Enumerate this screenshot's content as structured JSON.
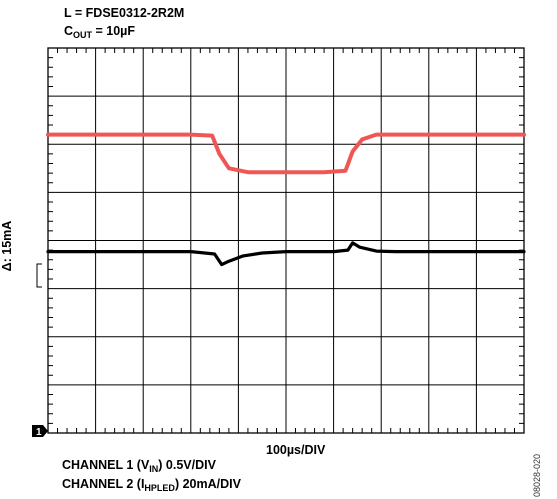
{
  "header": {
    "line1": "L = FDSE0312-2R2M",
    "line2_prefix": "C",
    "line2_sub": "OUT",
    "line2_suffix": " = 10µF"
  },
  "timebase": "100µs/DIV",
  "marker_label": "1",
  "delta_label": "Δ: 15mA",
  "figure_id": "08028-020",
  "channel1": {
    "prefix": "CHANNEL 1 (V",
    "sub": "IN",
    "suffix": ") 0.5V/DIV"
  },
  "channel2": {
    "prefix": "CHANNEL 2 (I",
    "sub": "HPLED",
    "suffix": ") 20mA/DIV"
  },
  "colors": {
    "ch1": "#f05656",
    "ch2": "#000000",
    "grid": "#000000"
  },
  "chart_data": {
    "type": "line",
    "title": "",
    "xlabel": "100µs/DIV",
    "grid": true,
    "x_divisions": 10,
    "y_divisions": 8,
    "xlim": [
      0,
      10
    ],
    "ylim": [
      0,
      8
    ],
    "series": [
      {
        "name": "CHANNEL 1 (VIN) 0.5V/DIV",
        "color": "#f05656",
        "x": [
          0,
          1,
          2,
          3,
          3.45,
          3.6,
          3.8,
          4.2,
          5,
          5.8,
          6.25,
          6.4,
          6.6,
          6.9,
          7.3,
          8,
          9,
          10
        ],
        "y": [
          6.2,
          6.2,
          6.2,
          6.2,
          6.18,
          5.8,
          5.5,
          5.42,
          5.42,
          5.42,
          5.45,
          5.85,
          6.1,
          6.2,
          6.2,
          6.2,
          6.2,
          6.2
        ]
      },
      {
        "name": "CHANNEL 2 (IHPLED) 20mA/DIV",
        "color": "#000000",
        "x": [
          0,
          1,
          2,
          3,
          3.5,
          3.65,
          3.8,
          4.1,
          4.5,
          5,
          6,
          6.3,
          6.4,
          6.55,
          6.9,
          7.3,
          8,
          9,
          10
        ],
        "y": [
          3.77,
          3.77,
          3.77,
          3.77,
          3.72,
          3.5,
          3.57,
          3.68,
          3.74,
          3.77,
          3.77,
          3.8,
          3.95,
          3.86,
          3.78,
          3.77,
          3.77,
          3.77,
          3.77
        ]
      }
    ]
  }
}
